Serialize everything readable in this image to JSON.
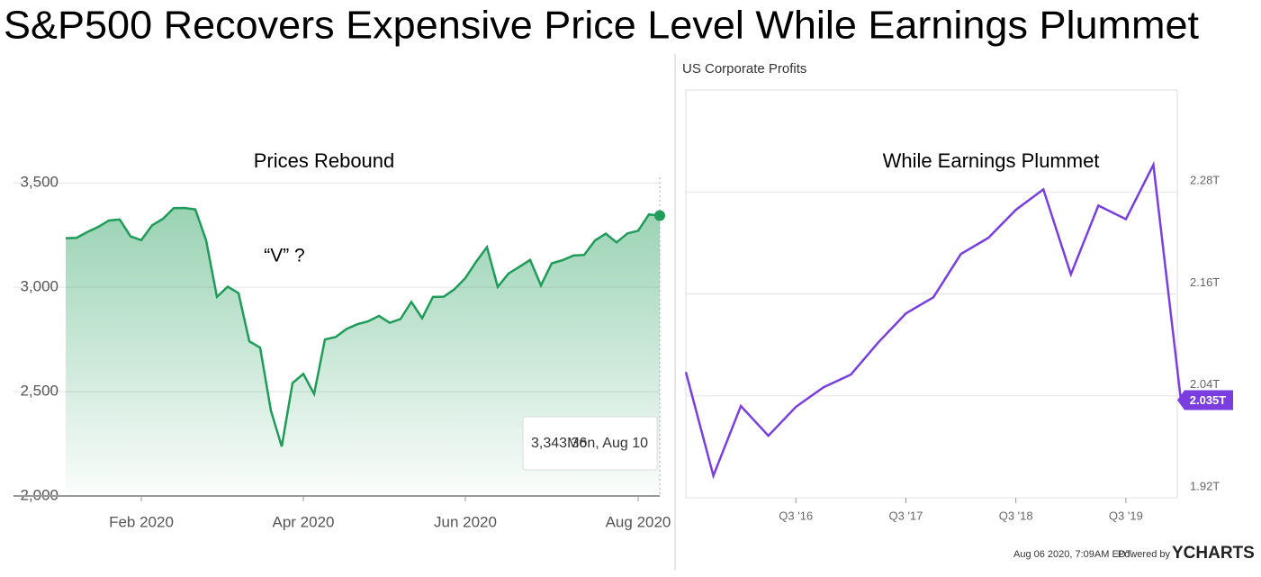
{
  "title": "S&P500 Recovers Expensive Price Level While Earnings Plummet",
  "chart_data": [
    {
      "type": "line",
      "area": true,
      "color": "#1e9c58",
      "annotations": [
        "Prices Rebound",
        "“V” ?"
      ],
      "categories": [
        null,
        null,
        null,
        null,
        null,
        null,
        null,
        "Feb 2020",
        null,
        null,
        null,
        null,
        null,
        null,
        null,
        null,
        null,
        null,
        null,
        null,
        null,
        null,
        "Apr 2020",
        null,
        null,
        null,
        null,
        null,
        null,
        null,
        null,
        null,
        null,
        null,
        null,
        null,
        null,
        "Jun 2020",
        null,
        null,
        null,
        null,
        null,
        null,
        null,
        null,
        null,
        null,
        null,
        null,
        null,
        null,
        null,
        "Aug 2020",
        null,
        null
      ],
      "values": [
        3235,
        3237,
        3265,
        3289,
        3320,
        3325,
        3244,
        3226,
        3297,
        3328,
        3379,
        3380,
        3373,
        3225,
        2954,
        3003,
        2972,
        2741,
        2711,
        2409,
        2237,
        2541,
        2585,
        2489,
        2750,
        2762,
        2800,
        2823,
        2837,
        2863,
        2830,
        2848,
        2930,
        2852,
        2954,
        2955,
        2991,
        3044,
        3122,
        3193,
        3002,
        3066,
        3098,
        3131,
        3009,
        3115,
        3130,
        3152,
        3155,
        3224,
        3257,
        3215,
        3258,
        3271,
        3349,
        3343.36
      ],
      "tooltip": {
        "value": 3343.36,
        "label": "3,343.36",
        "date": "Mon, Aug 10"
      },
      "ylim": [
        2000,
        3570
      ],
      "yticks": [
        {
          "value": 2000,
          "label": "2,000"
        },
        {
          "value": 2500,
          "label": "2,500"
        },
        {
          "value": 3000,
          "label": "3,000"
        },
        {
          "value": 3500,
          "label": "3,500"
        }
      ],
      "grid": true
    },
    {
      "type": "line",
      "area": false,
      "title": "US Corporate Profits",
      "color": "#7a3ee0",
      "annotations": [
        "While Earnings Plummet"
      ],
      "categories": [
        null,
        null,
        null,
        null,
        "Q3 '16",
        null,
        null,
        null,
        "Q3 '17",
        null,
        null,
        null,
        "Q3 '18",
        null,
        null,
        null,
        "Q3 '19",
        null,
        null
      ],
      "values": [
        2.068,
        1.946,
        2.028,
        1.993,
        2.027,
        2.05,
        2.065,
        2.103,
        2.137,
        2.156,
        2.207,
        2.226,
        2.259,
        2.283,
        2.183,
        2.264,
        2.248,
        2.312,
        2.035
      ],
      "value_labels": [
        null,
        null,
        null,
        null,
        null,
        null,
        null,
        null,
        null,
        null,
        null,
        null,
        null,
        null,
        null,
        null,
        null,
        null,
        "2.035T"
      ],
      "ylim": [
        1.92,
        2.4
      ],
      "yticks": [
        {
          "value": 1.92,
          "label": "1.92T"
        },
        {
          "value": 2.04,
          "label": "2.04T"
        },
        {
          "value": 2.16,
          "label": "2.16T"
        },
        {
          "value": 2.28,
          "label": "2.28T"
        }
      ],
      "grid": true,
      "footer": {
        "timestamp": "Aug 06 2020, 7:09AM EDT.",
        "powered": "Powered by",
        "brand": "YCHARTS"
      }
    }
  ]
}
